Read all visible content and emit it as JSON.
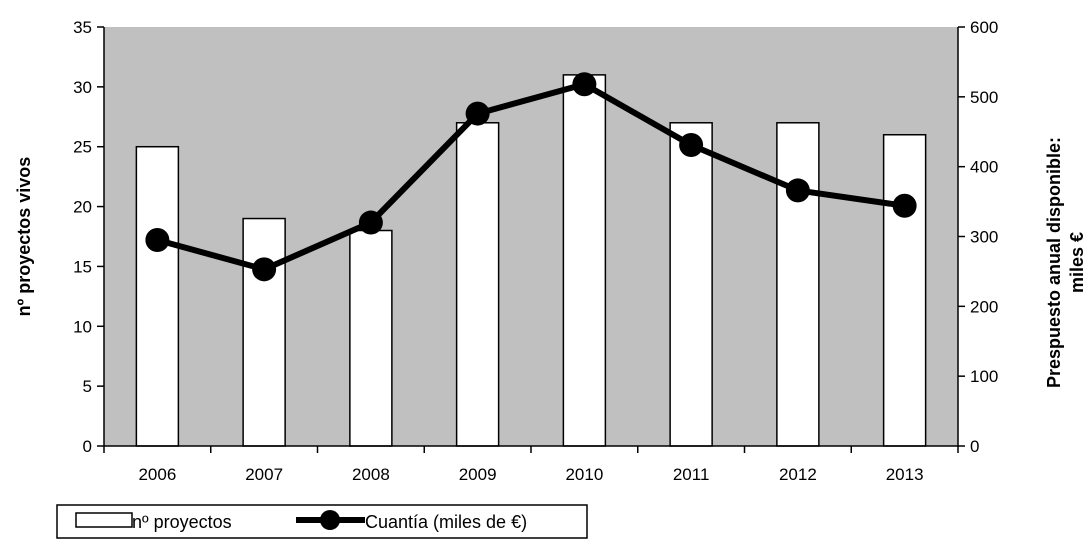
{
  "chart_data": {
    "type": "bar",
    "categories": [
      "2006",
      "2007",
      "2008",
      "2009",
      "2010",
      "2011",
      "2012",
      "2013"
    ],
    "series": [
      {
        "name": "nº proyectos",
        "type": "bar",
        "axis": "left",
        "values": [
          25,
          19,
          18,
          27,
          31,
          27,
          27,
          26
        ]
      },
      {
        "name": "Cuantía (miles de €)",
        "type": "line",
        "axis": "right",
        "values": [
          295,
          253,
          320,
          476,
          518,
          431,
          366,
          344
        ]
      }
    ],
    "ylabel": "nº proyectos vivos",
    "y2label_line1": "Prespuesto anual disponible:",
    "y2label_line2": "miles €",
    "ylim": [
      0,
      35
    ],
    "y2lim": [
      0,
      600
    ],
    "yticks": [
      "0",
      "5",
      "10",
      "15",
      "20",
      "25",
      "30",
      "35"
    ],
    "y2ticks": [
      "0",
      "100",
      "200",
      "300",
      "400",
      "500",
      "600"
    ],
    "grid": false,
    "legend_position": "bottom-left",
    "colors": {
      "plot_background": "#c0c0c0",
      "bar_fill": "#ffffff",
      "line": "#000000"
    }
  }
}
